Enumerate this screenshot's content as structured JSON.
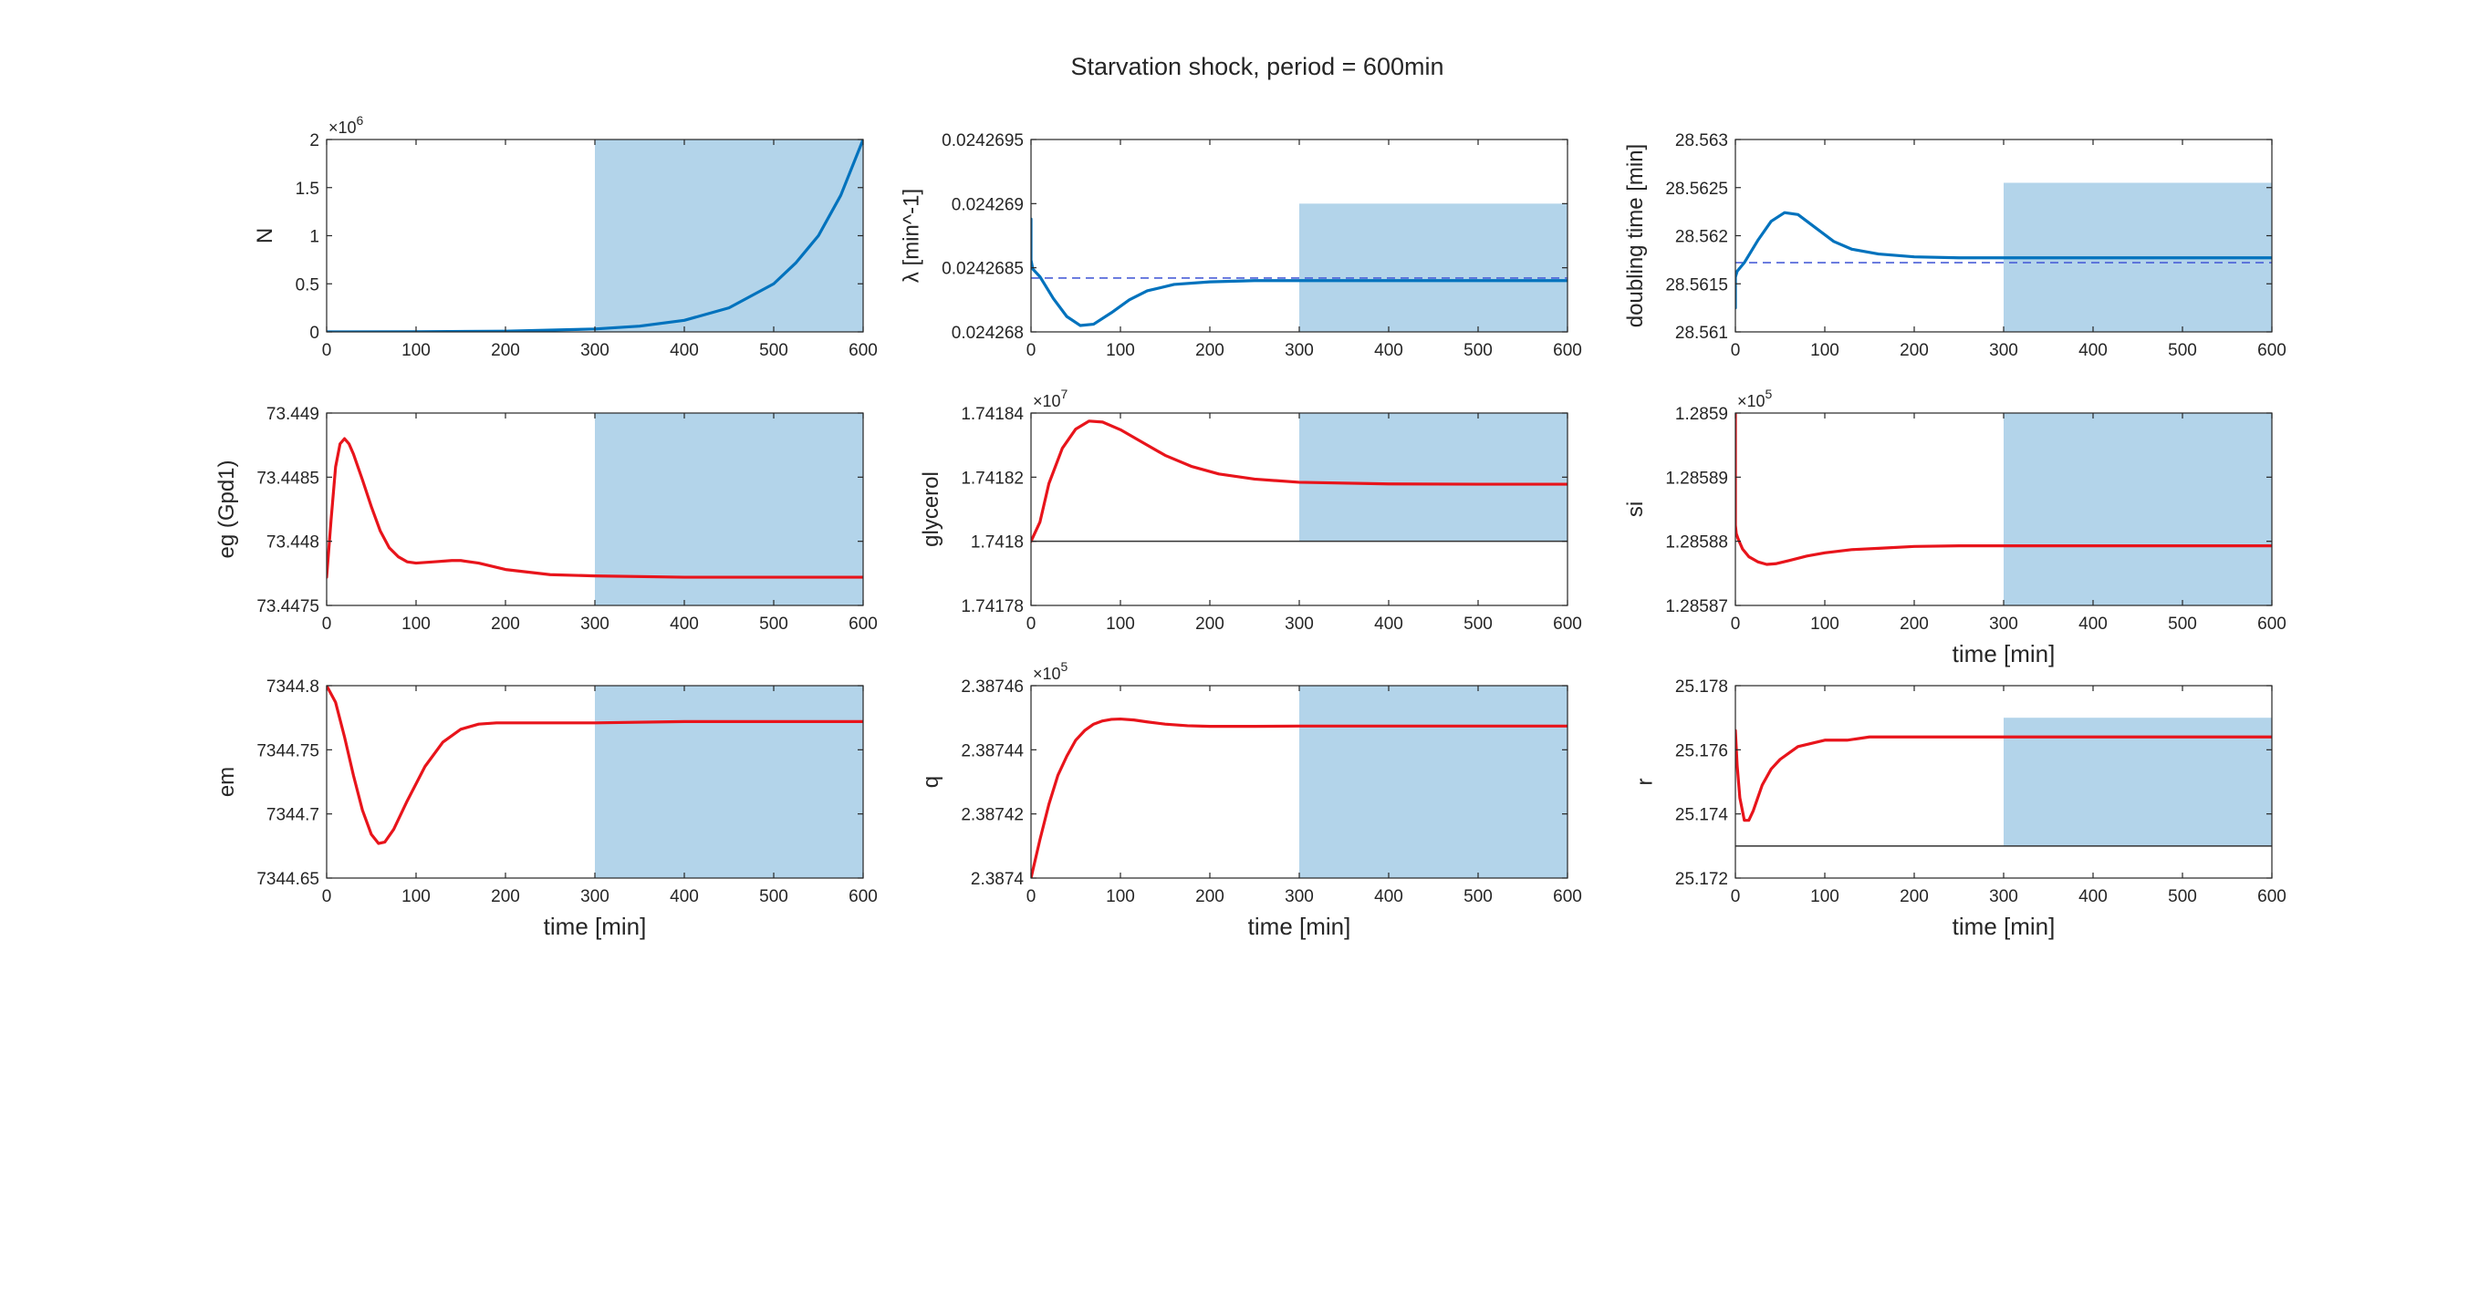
{
  "figure": {
    "title": "Starvation shock, period = 600min",
    "colors": {
      "shade": "#b3d4ea",
      "blue_line": "#0072bd",
      "red_line": "#e8141b",
      "dashed_ref": "#4a5fd8",
      "black_ref": "#333333",
      "axis": "#262626"
    }
  },
  "chart_data": [
    {
      "id": "N",
      "type": "line",
      "ylabel": "N",
      "xlabel": "",
      "xlim": [
        0,
        600
      ],
      "ylim": [
        0,
        2000000
      ],
      "xticks": [
        0,
        100,
        200,
        300,
        400,
        500,
        600
      ],
      "xtick_labels": [
        "0",
        "100",
        "200",
        "300",
        "400",
        "500",
        "600"
      ],
      "yticks": [
        0,
        500000,
        1000000,
        1500000,
        2000000
      ],
      "ytick_labels": [
        "0",
        "0.5",
        "1",
        "1.5",
        "2"
      ],
      "exponent": {
        "base": "×10",
        "power": "6"
      },
      "shade": {
        "x": [
          300,
          600
        ],
        "y": [
          0,
          2000000
        ]
      },
      "series": [
        {
          "color": "blue",
          "x": [
            0,
            100,
            200,
            300,
            350,
            400,
            450,
            500,
            525,
            550,
            575,
            600
          ],
          "y": [
            0,
            2000,
            7800,
            30000,
            60000,
            120000,
            250000,
            500000,
            720000,
            1000000,
            1420000,
            2000000
          ]
        }
      ],
      "ref_line": null
    },
    {
      "id": "lambda",
      "type": "line",
      "ylabel": "λ [min^-1]",
      "xlabel": "",
      "xlim": [
        0,
        600
      ],
      "ylim": [
        0.024268,
        0.0242695
      ],
      "xticks": [
        0,
        100,
        200,
        300,
        400,
        500,
        600
      ],
      "xtick_labels": [
        "0",
        "100",
        "200",
        "300",
        "400",
        "500",
        "600"
      ],
      "yticks": [
        0.024268,
        0.0242685,
        0.024269,
        0.0242695
      ],
      "ytick_labels": [
        "0.024268",
        "0.0242685",
        "0.024269",
        "0.0242695"
      ],
      "exponent": null,
      "shade": {
        "x": [
          300,
          600
        ],
        "y": [
          0.024268,
          0.024269
        ]
      },
      "series": [
        {
          "color": "blue",
          "x": [
            0,
            0,
            2,
            10,
            25,
            40,
            55,
            70,
            90,
            110,
            130,
            160,
            200,
            250,
            300,
            400,
            500,
            600
          ],
          "y": [
            0.02426888,
            0.02426856,
            0.02426849,
            0.02426843,
            0.02426826,
            0.02426812,
            0.02426805,
            0.02426806,
            0.02426815,
            0.02426825,
            0.02426832,
            0.02426837,
            0.02426839,
            0.0242684,
            0.0242684,
            0.0242684,
            0.0242684,
            0.0242684
          ]
        }
      ],
      "ref_line": {
        "y": 0.02426842,
        "style": "dashed"
      }
    },
    {
      "id": "doubling",
      "type": "line",
      "ylabel": "doubling time [min]",
      "xlabel": "",
      "xlim": [
        0,
        600
      ],
      "ylim": [
        28.561,
        28.563
      ],
      "xticks": [
        0,
        100,
        200,
        300,
        400,
        500,
        600
      ],
      "xtick_labels": [
        "0",
        "100",
        "200",
        "300",
        "400",
        "500",
        "600"
      ],
      "yticks": [
        28.561,
        28.5615,
        28.562,
        28.5625,
        28.563
      ],
      "ytick_labels": [
        "28.561",
        "28.5615",
        "28.562",
        "28.5625",
        "28.563"
      ],
      "exponent": null,
      "shade": {
        "x": [
          300,
          600
        ],
        "y": [
          28.561,
          28.56255
        ]
      },
      "series": [
        {
          "color": "blue",
          "x": [
            0,
            0,
            2,
            10,
            25,
            40,
            55,
            70,
            90,
            110,
            130,
            160,
            200,
            250,
            300,
            400,
            500,
            600
          ],
          "y": [
            28.56125,
            28.56157,
            28.56163,
            28.56172,
            28.56195,
            28.56215,
            28.56224,
            28.56222,
            28.56208,
            28.56194,
            28.56186,
            28.56181,
            28.56178,
            28.56177,
            28.56177,
            28.56177,
            28.56177,
            28.56177
          ]
        }
      ],
      "ref_line": {
        "y": 28.56172,
        "style": "dashed"
      }
    },
    {
      "id": "eg",
      "type": "line",
      "ylabel": "eg (Gpd1)",
      "xlabel": "",
      "xlim": [
        0,
        600
      ],
      "ylim": [
        73.4475,
        73.449
      ],
      "xticks": [
        0,
        100,
        200,
        300,
        400,
        500,
        600
      ],
      "xtick_labels": [
        "0",
        "100",
        "200",
        "300",
        "400",
        "500",
        "600"
      ],
      "yticks": [
        73.4475,
        73.448,
        73.4485,
        73.449
      ],
      "ytick_labels": [
        "73.4475",
        "73.448",
        "73.4485",
        "73.449"
      ],
      "exponent": null,
      "shade": {
        "x": [
          300,
          600
        ],
        "y": [
          73.4475,
          73.449
        ]
      },
      "series": [
        {
          "color": "red",
          "x": [
            0,
            5,
            10,
            15,
            20,
            25,
            30,
            40,
            50,
            60,
            70,
            80,
            90,
            100,
            120,
            140,
            150,
            170,
            200,
            250,
            300,
            400,
            500,
            600
          ],
          "y": [
            73.44772,
            73.44817,
            73.44858,
            73.44876,
            73.4488,
            73.44876,
            73.44868,
            73.44848,
            73.44827,
            73.44808,
            73.44795,
            73.44788,
            73.44784,
            73.44783,
            73.44784,
            73.44785,
            73.44785,
            73.44783,
            73.44778,
            73.44774,
            73.44773,
            73.44772,
            73.44772,
            73.44772
          ]
        }
      ],
      "ref_line": null
    },
    {
      "id": "glycerol",
      "type": "line",
      "ylabel": "glycerol",
      "xlabel": "",
      "xlim": [
        0,
        600
      ],
      "ylim": [
        17417800,
        17418400
      ],
      "xticks": [
        0,
        100,
        200,
        300,
        400,
        500,
        600
      ],
      "xtick_labels": [
        "0",
        "100",
        "200",
        "300",
        "400",
        "500",
        "600"
      ],
      "yticks": [
        17417800,
        17418000,
        17418200,
        17418400
      ],
      "ytick_labels": [
        "1.74178",
        "1.7418",
        "1.74182",
        "1.74184"
      ],
      "exponent": {
        "base": "×10",
        "power": "7"
      },
      "shade": {
        "x": [
          300,
          600
        ],
        "y": [
          17418000,
          17418400
        ]
      },
      "series": [
        {
          "color": "red",
          "x": [
            0,
            10,
            20,
            35,
            50,
            65,
            80,
            100,
            125,
            150,
            180,
            210,
            250,
            300,
            400,
            500,
            600
          ],
          "y": [
            17418000,
            17418060,
            17418180,
            17418290,
            17418350,
            17418375,
            17418372,
            17418348,
            17418308,
            17418268,
            17418233,
            17418210,
            17418194,
            17418184,
            17418179,
            17418178,
            17418178
          ]
        }
      ],
      "ref_line": {
        "y": 17418000,
        "style": "solid"
      }
    },
    {
      "id": "si",
      "type": "line",
      "ylabel": "si",
      "xlabel": "time [min]",
      "xlim": [
        0,
        600
      ],
      "ylim": [
        128587,
        128590
      ],
      "xticks": [
        0,
        100,
        200,
        300,
        400,
        500,
        600
      ],
      "xtick_labels": [
        "0",
        "100",
        "200",
        "300",
        "400",
        "500",
        "600"
      ],
      "yticks": [
        128587,
        128588,
        128589,
        128590
      ],
      "ytick_labels": [
        "1.28587",
        "1.28588",
        "1.28589",
        "1.2859"
      ],
      "exponent": {
        "base": "×10",
        "power": "5"
      },
      "shade": {
        "x": [
          300,
          600
        ],
        "y": [
          128587,
          128590
        ]
      },
      "series": [
        {
          "color": "red",
          "x": [
            0,
            0,
            1,
            3,
            8,
            15,
            25,
            35,
            45,
            60,
            80,
            100,
            130,
            160,
            200,
            250,
            300,
            400,
            500,
            600
          ],
          "y": [
            128590,
            128588.25,
            128588.12,
            128588.04,
            128587.88,
            128587.76,
            128587.68,
            128587.64,
            128587.65,
            128587.7,
            128587.77,
            128587.82,
            128587.87,
            128587.89,
            128587.92,
            128587.93,
            128587.93,
            128587.93,
            128587.93,
            128587.93
          ]
        }
      ],
      "ref_line": null
    },
    {
      "id": "em",
      "type": "line",
      "ylabel": "em",
      "xlabel": "time [min]",
      "xlim": [
        0,
        600
      ],
      "ylim": [
        7344.65,
        7344.8
      ],
      "xticks": [
        0,
        100,
        200,
        300,
        400,
        500,
        600
      ],
      "xtick_labels": [
        "0",
        "100",
        "200",
        "300",
        "400",
        "500",
        "600"
      ],
      "yticks": [
        7344.65,
        7344.7,
        7344.75,
        7344.8
      ],
      "ytick_labels": [
        "7344.65",
        "7344.7",
        "7344.75",
        "7344.8"
      ],
      "exponent": null,
      "shade": {
        "x": [
          300,
          600
        ],
        "y": [
          7344.65,
          7344.8
        ]
      },
      "series": [
        {
          "color": "red",
          "x": [
            0,
            10,
            20,
            30,
            40,
            50,
            58,
            65,
            75,
            90,
            110,
            130,
            150,
            170,
            190,
            210,
            250,
            300,
            400,
            500,
            600
          ],
          "y": [
            7344.8,
            7344.787,
            7344.76,
            7344.73,
            7344.703,
            7344.684,
            7344.677,
            7344.678,
            7344.688,
            7344.71,
            7344.737,
            7344.756,
            7344.766,
            7344.77,
            7344.771,
            7344.771,
            7344.771,
            7344.771,
            7344.772,
            7344.772,
            7344.772
          ]
        }
      ],
      "ref_line": null
    },
    {
      "id": "q",
      "type": "line",
      "ylabel": "q",
      "xlabel": "time [min]",
      "xlim": [
        0,
        600
      ],
      "ylim": [
        238740,
        238746
      ],
      "xticks": [
        0,
        100,
        200,
        300,
        400,
        500,
        600
      ],
      "xtick_labels": [
        "0",
        "100",
        "200",
        "300",
        "400",
        "500",
        "600"
      ],
      "yticks": [
        238740,
        238742,
        238744,
        238746
      ],
      "ytick_labels": [
        "2.3874",
        "2.38742",
        "2.38744",
        "2.38746"
      ],
      "exponent": {
        "base": "×10",
        "power": "5"
      },
      "shade": {
        "x": [
          300,
          600
        ],
        "y": [
          238740,
          238746
        ]
      },
      "series": [
        {
          "color": "red",
          "x": [
            0,
            10,
            20,
            30,
            40,
            50,
            60,
            70,
            80,
            90,
            100,
            115,
            130,
            150,
            175,
            200,
            250,
            300,
            400,
            500,
            600
          ],
          "y": [
            238740.0,
            238741.2,
            238742.3,
            238743.2,
            238743.8,
            238744.3,
            238744.6,
            238744.8,
            238744.9,
            238744.95,
            238744.96,
            238744.93,
            238744.87,
            238744.8,
            238744.75,
            238744.73,
            238744.73,
            238744.74,
            238744.74,
            238744.74,
            238744.74
          ]
        }
      ],
      "ref_line": null
    },
    {
      "id": "r",
      "type": "line",
      "ylabel": "r",
      "xlabel": "time [min]",
      "xlim": [
        0,
        600
      ],
      "ylim": [
        25.172,
        25.178
      ],
      "xticks": [
        0,
        100,
        200,
        300,
        400,
        500,
        600
      ],
      "xtick_labels": [
        "0",
        "100",
        "200",
        "300",
        "400",
        "500",
        "600"
      ],
      "yticks": [
        25.172,
        25.174,
        25.176,
        25.178
      ],
      "ytick_labels": [
        "25.172",
        "25.174",
        "25.176",
        "25.178"
      ],
      "exponent": null,
      "shade": {
        "x": [
          300,
          600
        ],
        "y": [
          25.173,
          25.177
        ]
      },
      "series": [
        {
          "color": "red",
          "x": [
            0,
            2,
            5,
            10,
            15,
            20,
            25,
            30,
            40,
            50,
            60,
            70,
            85,
            100,
            125,
            150,
            200,
            250,
            300,
            400,
            500,
            600
          ],
          "y": [
            25.1766,
            25.1755,
            25.1745,
            25.1738,
            25.1738,
            25.1741,
            25.1745,
            25.1749,
            25.1754,
            25.1757,
            25.1759,
            25.1761,
            25.1762,
            25.1763,
            25.1763,
            25.1764,
            25.1764,
            25.1764,
            25.1764,
            25.1764,
            25.1764,
            25.1764
          ]
        }
      ],
      "ref_line": {
        "y": 25.173,
        "style": "solid"
      }
    }
  ]
}
